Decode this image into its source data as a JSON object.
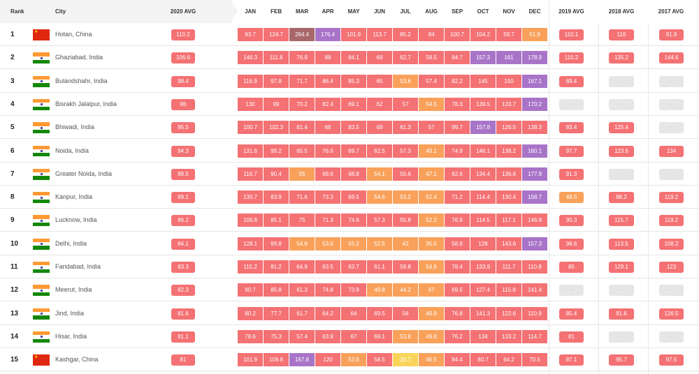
{
  "headers": {
    "rank": "Rank",
    "city": "City",
    "avg2020": "2020 AVG",
    "months": [
      "JAN",
      "FEB",
      "MAR",
      "APR",
      "MAY",
      "JUN",
      "JUL",
      "AUG",
      "SEP",
      "OCT",
      "NOV",
      "DEC"
    ],
    "avg2019": "2019 AVG",
    "avg2018": "2018 AVG",
    "avg2017": "2017 AVG"
  },
  "colors": {
    "red": "#f47174",
    "orange": "#f9a15a",
    "yellow": "#f8d55a",
    "purple": "#a874c8",
    "maroon": "#a8676a",
    "gray": "#e6e6e6",
    "gray_text": "#bbbbbb",
    "india_saffron": "#ff9933",
    "india_green": "#138808",
    "china_red": "#de2910"
  },
  "rows": [
    {
      "rank": "1",
      "flag": "china",
      "city": "Hotan, China",
      "avg2020": "110.2",
      "months": [
        "93.7",
        "124.7",
        "264.4",
        "176.4",
        "101.9",
        "113.7",
        "85.2",
        "84",
        "100.7",
        "104.2",
        "59.7",
        "51.9"
      ],
      "month_colors": [
        "red",
        "red",
        "maroon",
        "purple",
        "red",
        "red",
        "red",
        "red",
        "red",
        "red",
        "red",
        "orange"
      ],
      "y2019": "110.1",
      "y2018": "116",
      "y2017": "91.9"
    },
    {
      "rank": "2",
      "flag": "india",
      "city": "Ghaziabad, India",
      "avg2020": "106.6",
      "months": [
        "146.3",
        "111.8",
        "76.9",
        "88",
        "84.1",
        "69",
        "62.7",
        "58.5",
        "84.7",
        "157.3",
        "161",
        "178.9"
      ],
      "month_colors": [
        "red",
        "red",
        "red",
        "red",
        "red",
        "red",
        "red",
        "red",
        "red",
        "purple",
        "purple",
        "purple"
      ],
      "y2019": "110.2",
      "y2018": "135.2",
      "y2017": "144.6"
    },
    {
      "rank": "3",
      "flag": "india",
      "city": "Bulandshahr, India",
      "avg2020": "98.4",
      "months": [
        "116.9",
        "97.8",
        "71.7",
        "86.4",
        "85.3",
        "65",
        "53.6",
        "57.4",
        "82.2",
        "145",
        "150",
        "167.1"
      ],
      "month_colors": [
        "red",
        "red",
        "red",
        "red",
        "red",
        "red",
        "orange",
        "red",
        "red",
        "red",
        "red",
        "purple"
      ],
      "y2019": "89.4",
      "y2018": "-",
      "y2017": "-"
    },
    {
      "rank": "4",
      "flag": "india",
      "city": "Bisrakh Jalalpur, India",
      "avg2020": "96",
      "months": [
        "130",
        "99",
        "70.2",
        "82.4",
        "69.1",
        "62",
        "57",
        "54.5",
        "78.3",
        "139.5",
        "133.7",
        "170.2"
      ],
      "month_colors": [
        "red",
        "red",
        "red",
        "red",
        "red",
        "red",
        "red",
        "orange",
        "red",
        "red",
        "red",
        "purple"
      ],
      "y2019": "-",
      "y2018": "-",
      "y2017": "-"
    },
    {
      "rank": "5",
      "flag": "india",
      "city": "Bhiwadi, India",
      "avg2020": "95.5",
      "months": [
        "100.7",
        "102.3",
        "81.4",
        "66",
        "83.5",
        "69",
        "61.3",
        "57",
        "99.7",
        "157.8",
        "126.5",
        "138.3"
      ],
      "month_colors": [
        "red",
        "red",
        "red",
        "red",
        "red",
        "red",
        "red",
        "red",
        "red",
        "purple",
        "red",
        "red"
      ],
      "y2019": "83.4",
      "y2018": "125.4",
      "y2017": "-"
    },
    {
      "rank": "6",
      "flag": "india",
      "city": "Noida, India",
      "avg2020": "94.3",
      "months": [
        "131.6",
        "99.2",
        "65.5",
        "76.6",
        "69.7",
        "62.5",
        "57.3",
        "49.1",
        "74.9",
        "146.1",
        "138.2",
        "160.1"
      ],
      "month_colors": [
        "red",
        "red",
        "red",
        "red",
        "red",
        "red",
        "red",
        "orange",
        "red",
        "red",
        "red",
        "purple"
      ],
      "y2019": "97.7",
      "y2018": "123.6",
      "y2017": "134"
    },
    {
      "rank": "7",
      "flag": "india",
      "city": "Greater Noida, India",
      "avg2020": "89.5",
      "months": [
        "116.7",
        "90.4",
        "55",
        "68.6",
        "68.8",
        "54.1",
        "55.6",
        "47.1",
        "62.6",
        "134.4",
        "136.6",
        "177.9"
      ],
      "month_colors": [
        "red",
        "red",
        "orange",
        "red",
        "red",
        "orange",
        "red",
        "orange",
        "red",
        "red",
        "red",
        "purple"
      ],
      "y2019": "91.3",
      "y2018": "-",
      "y2017": "-"
    },
    {
      "rank": "8",
      "flag": "india",
      "city": "Kanpur, India",
      "avg2020": "89.1",
      "months": [
        "130.7",
        "83.9",
        "71.6",
        "73.3",
        "69.5",
        "54.6",
        "53.2",
        "52.4",
        "71.2",
        "114.4",
        "130.4",
        "158.7"
      ],
      "month_colors": [
        "red",
        "red",
        "red",
        "red",
        "red",
        "orange",
        "orange",
        "orange",
        "red",
        "red",
        "red",
        "purple"
      ],
      "y2019": "48.5",
      "y2018": "88.2",
      "y2017": "119.2"
    },
    {
      "rank": "9",
      "flag": "india",
      "city": "Lucknow, India",
      "avg2020": "86.2",
      "months": [
        "106.8",
        "85.1",
        "75",
        "71.3",
        "74.6",
        "57.3",
        "55.8",
        "52.2",
        "76.9",
        "114.5",
        "117.1",
        "146.8"
      ],
      "month_colors": [
        "red",
        "red",
        "red",
        "red",
        "red",
        "red",
        "red",
        "orange",
        "red",
        "red",
        "red",
        "red"
      ],
      "y2019": "90.3",
      "y2018": "115.7",
      "y2017": "119.2"
    },
    {
      "rank": "10",
      "flag": "india",
      "city": "Delhi, India",
      "avg2020": "84.1",
      "months": [
        "128.1",
        "99.8",
        "54.8",
        "53.6",
        "55.2",
        "52.5",
        "42",
        "35.5",
        "58.9",
        "128",
        "143.6",
        "157.3"
      ],
      "month_colors": [
        "red",
        "red",
        "orange",
        "orange",
        "orange",
        "orange",
        "orange",
        "orange",
        "red",
        "red",
        "red",
        "purple"
      ],
      "y2019": "98.6",
      "y2018": "113.5",
      "y2017": "108.2"
    },
    {
      "rank": "11",
      "flag": "india",
      "city": "Faridabad, India",
      "avg2020": "83.3",
      "months": [
        "115.2",
        "81.2",
        "64.9",
        "63.5",
        "63.7",
        "61.1",
        "59.8",
        "54.6",
        "78.4",
        "133.9",
        "111.7",
        "110.8"
      ],
      "month_colors": [
        "red",
        "red",
        "red",
        "red",
        "red",
        "red",
        "red",
        "orange",
        "red",
        "red",
        "red",
        "red"
      ],
      "y2019": "85",
      "y2018": "129.1",
      "y2017": "123"
    },
    {
      "rank": "12",
      "flag": "india",
      "city": "Meerut, India",
      "avg2020": "82.3",
      "months": [
        "90.7",
        "85.8",
        "61.3",
        "74.8",
        "73.9",
        "49.8",
        "44.2",
        "47",
        "69.5",
        "127.4",
        "115.8",
        "141.4"
      ],
      "month_colors": [
        "red",
        "red",
        "red",
        "red",
        "red",
        "orange",
        "orange",
        "orange",
        "red",
        "red",
        "red",
        "red"
      ],
      "y2019": "-",
      "y2018": "-",
      "y2017": "-"
    },
    {
      "rank": "13",
      "flag": "india",
      "city": "Jind, India",
      "avg2020": "81.6",
      "months": [
        "80.2",
        "77.7",
        "61.7",
        "64.2",
        "64",
        "69.5",
        "56",
        "49.9",
        "76.8",
        "141.3",
        "122.6",
        "110.9"
      ],
      "month_colors": [
        "red",
        "red",
        "red",
        "red",
        "red",
        "red",
        "red",
        "orange",
        "red",
        "red",
        "red",
        "red"
      ],
      "y2019": "85.4",
      "y2018": "91.6",
      "y2017": "126.5"
    },
    {
      "rank": "14",
      "flag": "india",
      "city": "Hisar, India",
      "avg2020": "81.1",
      "months": [
        "78.6",
        "75.3",
        "57.4",
        "63.9",
        "67",
        "69.1",
        "53.8",
        "49.8",
        "76.2",
        "134",
        "133.2",
        "114.7"
      ],
      "month_colors": [
        "red",
        "red",
        "red",
        "red",
        "red",
        "red",
        "orange",
        "orange",
        "red",
        "red",
        "red",
        "red"
      ],
      "y2019": "81",
      "y2018": "-",
      "y2017": "-"
    },
    {
      "rank": "15",
      "flag": "china",
      "city": "Kashgar, China",
      "avg2020": "81",
      "months": [
        "101.9",
        "109.8",
        "167.8",
        "120",
        "53.6",
        "58.5",
        "30.7",
        "46.5",
        "84.4",
        "80.7",
        "64.2",
        "70.5"
      ],
      "month_colors": [
        "red",
        "red",
        "purple",
        "red",
        "orange",
        "red",
        "yellow",
        "orange",
        "red",
        "red",
        "red",
        "red"
      ],
      "y2019": "87.1",
      "y2018": "95.7",
      "y2017": "97.5"
    }
  ]
}
